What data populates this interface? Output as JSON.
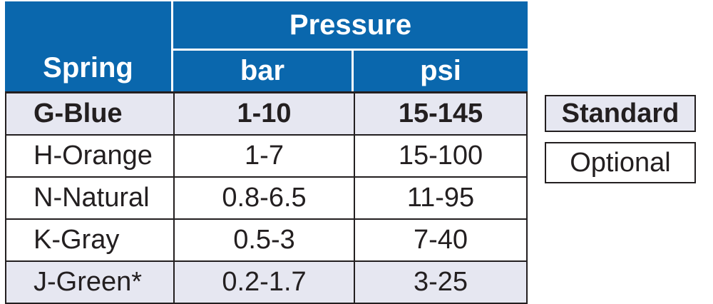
{
  "header": {
    "spring_label": "Spring",
    "pressure_label": "Pressure",
    "bar_label": "bar",
    "psi_label": "psi"
  },
  "rows": [
    {
      "spring": "G-Blue",
      "bar": "1-10",
      "psi": "15-145",
      "type": "standard"
    },
    {
      "spring": "H-Orange",
      "bar": "1-7",
      "psi": "15-100",
      "type": "optional"
    },
    {
      "spring": "N-Natural",
      "bar": "0.8-6.5",
      "psi": "11-95",
      "type": "optional"
    },
    {
      "spring": "K-Gray",
      "bar": "0.5-3",
      "psi": "7-40",
      "type": "optional"
    },
    {
      "spring": "J-Green*",
      "bar": "0.2-1.7",
      "psi": "3-25",
      "type": "optional"
    }
  ],
  "legend": {
    "standard_label": "Standard",
    "optional_label": "Optional"
  },
  "colors": {
    "header_blue": "#0a67ad",
    "standard_shade": "#e6e7f1",
    "text": "#231f20"
  }
}
